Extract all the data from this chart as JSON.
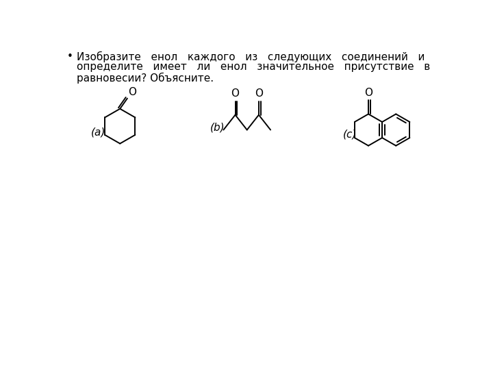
{
  "label_a": "(a)",
  "label_b": "(b)",
  "label_c": "(c)",
  "bg_color": "#ffffff",
  "text_color": "#000000",
  "line_color": "#000000",
  "lw": 1.4,
  "font_size": 11
}
